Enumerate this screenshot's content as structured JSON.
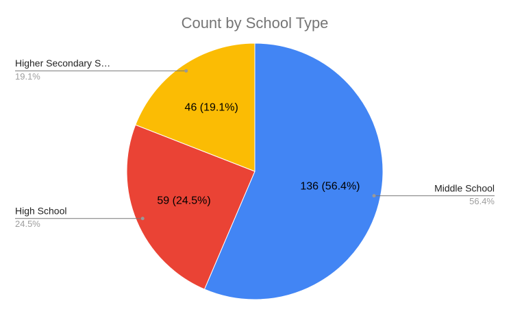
{
  "chart_data": {
    "type": "pie",
    "title": "Count by School Type",
    "categories": [
      "Middle School",
      "High School",
      "Higher Secondary S…"
    ],
    "values": [
      136,
      59,
      46
    ],
    "value_labels": [
      "136 (56.4%)",
      "59 (24.5%)",
      "46 (19.1%)"
    ],
    "percent_labels": [
      "56.4%",
      "24.5%",
      "19.1%"
    ],
    "colors": [
      "#4285f4",
      "#ea4335",
      "#fbbc04"
    ]
  }
}
